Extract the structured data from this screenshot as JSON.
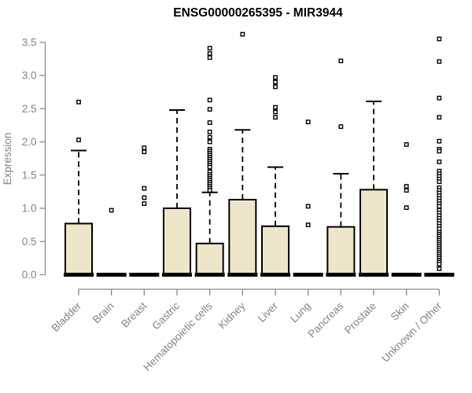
{
  "chart_data": {
    "type": "boxplot",
    "title": "ENSG00000265395 - MIR3944",
    "xlabel": "",
    "ylabel": "Expression",
    "ylim": [
      0,
      3.5
    ],
    "ytick_step": 0.5,
    "ytick_labels": [
      "0.0",
      "0.5",
      "1.0",
      "1.5",
      "2.0",
      "2.5",
      "3.0",
      "3.5"
    ],
    "categories": [
      "Bladder",
      "Brain",
      "Breast",
      "Gastric",
      "Hematopoietic cells",
      "Kidney",
      "Liver",
      "Lung",
      "Pancreas",
      "Prostate",
      "Skin",
      "Unknown / Other"
    ],
    "series": [
      {
        "category": "Bladder",
        "q1": 0,
        "median": 0,
        "q3": 0.77,
        "whisker_low": 0,
        "whisker_high": 1.87,
        "outliers": [
          2.6,
          2.03
        ]
      },
      {
        "category": "Brain",
        "q1": 0,
        "median": 0,
        "q3": 0,
        "whisker_low": 0,
        "whisker_high": 0,
        "outliers": [
          0.97
        ]
      },
      {
        "category": "Breast",
        "q1": 0,
        "median": 0,
        "q3": 0,
        "whisker_low": 0,
        "whisker_high": 0,
        "outliers": [
          1.91,
          1.85,
          1.3,
          1.16,
          1.07
        ]
      },
      {
        "category": "Gastric",
        "q1": 0,
        "median": 0,
        "q3": 1.0,
        "whisker_low": 0,
        "whisker_high": 2.48,
        "outliers": []
      },
      {
        "category": "Hematopoietic cells",
        "q1": 0,
        "median": 0,
        "q3": 0.47,
        "whisker_low": 0,
        "whisker_high": 1.24,
        "outliers": [
          3.41,
          3.33,
          3.27,
          2.63,
          2.49,
          2.29,
          2.15,
          2.07,
          2.0,
          1.89,
          1.86,
          1.83,
          1.8,
          1.77,
          1.74,
          1.71,
          1.68,
          1.65,
          1.62,
          1.55,
          1.51,
          1.48,
          1.45,
          1.42,
          1.39,
          1.36,
          1.33,
          1.3,
          1.27
        ]
      },
      {
        "category": "Kidney",
        "q1": 0,
        "median": 0,
        "q3": 1.13,
        "whisker_low": 0,
        "whisker_high": 2.18,
        "outliers": [
          3.62
        ]
      },
      {
        "category": "Liver",
        "q1": 0,
        "median": 0,
        "q3": 0.73,
        "whisker_low": 0,
        "whisker_high": 1.62,
        "outliers": [
          2.97,
          2.9,
          2.83,
          2.52,
          2.45,
          2.37
        ]
      },
      {
        "category": "Lung",
        "q1": 0,
        "median": 0,
        "q3": 0,
        "whisker_low": 0,
        "whisker_high": 0,
        "outliers": [
          2.3,
          1.03,
          0.75
        ]
      },
      {
        "category": "Pancreas",
        "q1": 0,
        "median": 0,
        "q3": 0.72,
        "whisker_low": 0,
        "whisker_high": 1.52,
        "outliers": [
          3.22,
          2.23
        ]
      },
      {
        "category": "Prostate",
        "q1": 0,
        "median": 0,
        "q3": 1.28,
        "whisker_low": 0,
        "whisker_high": 2.61,
        "outliers": []
      },
      {
        "category": "Skin",
        "q1": 0,
        "median": 0,
        "q3": 0,
        "whisker_low": 0,
        "whisker_high": 0,
        "outliers": [
          1.96,
          1.33,
          1.27,
          1.01
        ]
      },
      {
        "category": "Unknown / Other",
        "q1": 0,
        "median": 0,
        "q3": 0,
        "whisker_low": 0,
        "whisker_high": 0,
        "outliers": [
          3.55,
          3.21,
          2.66,
          2.37,
          2.01,
          1.89,
          1.86,
          1.7,
          1.56,
          1.52,
          1.48,
          1.44,
          1.4,
          1.31,
          1.27,
          1.23,
          1.19,
          1.15,
          1.11,
          1.07,
          1.03,
          0.97,
          0.93,
          0.89,
          0.85,
          0.81,
          0.77,
          0.73,
          0.69,
          0.64,
          0.61,
          0.58,
          0.55,
          0.52,
          0.49,
          0.46,
          0.43,
          0.4,
          0.37,
          0.34,
          0.31,
          0.28,
          0.25,
          0.22,
          0.19,
          0.16,
          0.09
        ]
      }
    ],
    "layout": {
      "grid": false,
      "legend": false,
      "box_fill": "#EDE7CA",
      "box_border": "#000000",
      "axis_color": "#8A8A8A",
      "label_color": "#848484",
      "title_color": "#000000",
      "point_fill": "#FFFFFF",
      "point_border": "#000000"
    }
  }
}
